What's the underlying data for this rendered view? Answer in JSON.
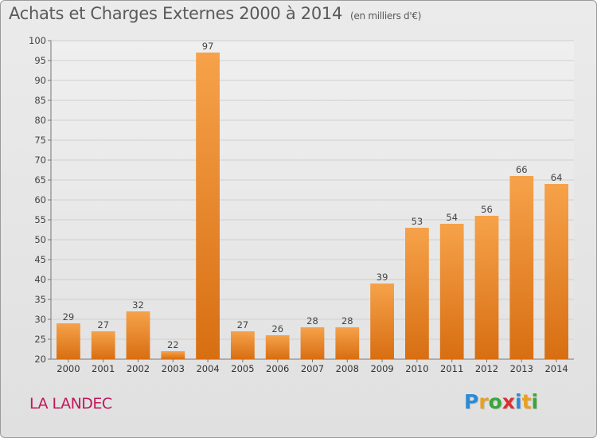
{
  "title": "Achats et Charges Externes 2000 à 2014",
  "subtitle": "(en milliers d'€)",
  "place": "LA LANDEC",
  "logo": {
    "text": "Proxiti",
    "letters": [
      {
        "char": "P",
        "color": "#2a8bd4"
      },
      {
        "char": "r",
        "color": "#e8a020"
      },
      {
        "char": "o",
        "color": "#3aa63a"
      },
      {
        "char": "x",
        "color": "#d93030"
      },
      {
        "char": "i",
        "color": "#2a8bd4"
      },
      {
        "char": "t",
        "color": "#e8a020"
      },
      {
        "char": "i",
        "color": "#3aa63a"
      }
    ]
  },
  "chart_data": {
    "type": "bar",
    "title": "Achats et Charges Externes 2000 à 2014",
    "subtitle": "(en milliers d'€)",
    "categories": [
      "2000",
      "2001",
      "2002",
      "2003",
      "2004",
      "2005",
      "2006",
      "2007",
      "2008",
      "2009",
      "2010",
      "2011",
      "2012",
      "2013",
      "2014"
    ],
    "values": [
      29,
      27,
      32,
      22,
      97,
      27,
      26,
      28,
      28,
      39,
      53,
      54,
      56,
      66,
      64
    ],
    "ylim": [
      20,
      100
    ],
    "yticks": [
      20,
      25,
      30,
      35,
      40,
      45,
      50,
      55,
      60,
      65,
      70,
      75,
      80,
      85,
      90,
      95,
      100
    ],
    "grid": true,
    "legend": "none",
    "bar_color": "#f08a24",
    "xlabel": "",
    "ylabel": ""
  }
}
